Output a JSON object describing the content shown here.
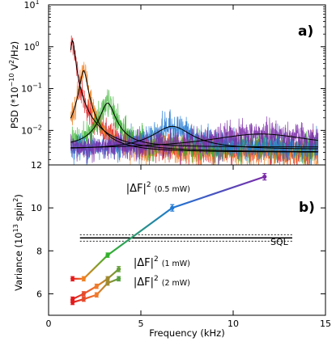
{
  "figure": {
    "bg_color": "#ffffff"
  },
  "chart_data": [
    {
      "panel_label": "a)",
      "type": "line",
      "ylabel": "PSD (*10$^{-10}$ V$^2$/Hz)",
      "ylabel_main": "PSD (*10",
      "ylabel_exp1": "−10",
      "ylabel_mid": " V",
      "ylabel_exp2": "2",
      "ylabel_end": "/Hz)",
      "yscale": "log",
      "ylim": [
        0.0015,
        10
      ],
      "xlim": [
        0,
        15
      ],
      "y_ticks": [
        {
          "value": 10,
          "base": "10",
          "exp": "1"
        },
        {
          "value": 1,
          "base": "10",
          "exp": "0"
        },
        {
          "value": 0.1,
          "base": "10",
          "exp": "−1"
        },
        {
          "value": 0.01,
          "base": "10",
          "exp": "−2"
        }
      ],
      "series": [
        {
          "color": "#e31a1c",
          "peak_khz": 1.3,
          "peak_psd": 1.4,
          "width_khz": 0.12,
          "floor": 0.003
        },
        {
          "color": "#f08020",
          "peak_khz": 1.9,
          "peak_psd": 0.27,
          "width_khz": 0.18,
          "floor": 0.003
        },
        {
          "color": "#33b02c",
          "peak_khz": 3.2,
          "peak_psd": 0.045,
          "width_khz": 0.35,
          "floor": 0.004
        },
        {
          "color": "#1f78d4",
          "peak_khz": 6.7,
          "peak_psd": 0.0125,
          "width_khz": 1.0,
          "floor": 0.0035
        },
        {
          "color": "#7b2aa8",
          "peak_khz": 11.5,
          "peak_psd": 0.0082,
          "width_khz": 3.0,
          "floor": 0.0035
        }
      ]
    },
    {
      "panel_label": "b)",
      "type": "line",
      "xlabel": "Frequency (kHz)",
      "ylabel": "Variance (10$^{13}$ spin$^2$)",
      "ylabel_main": "Variance (10",
      "ylabel_exp1": "13",
      "ylabel_mid": " spin",
      "ylabel_exp2": "2",
      "ylabel_end": ")",
      "xlim": [
        0,
        15
      ],
      "ylim": [
        5,
        12
      ],
      "x_ticks": [
        0,
        5,
        10,
        15
      ],
      "y_ticks": [
        6,
        8,
        10,
        12
      ],
      "sql_label": "SQL",
      "sql_value": 8.6,
      "sql_band": [
        8.45,
        8.75
      ],
      "annotations": [
        {
          "text": "|ΔF|",
          "exp": "2",
          "power": "(0.5 mW)",
          "x": 4.2,
          "y": 10.75
        },
        {
          "text": "|ΔF|",
          "exp": "2",
          "power": "(1 mW)",
          "x": 4.6,
          "y": 7.3
        },
        {
          "text": "|ΔF|",
          "exp": "2",
          "power": "(2 mW)",
          "x": 4.6,
          "y": 6.4
        }
      ],
      "series": [
        {
          "name": "0.5 mW",
          "x": [
            1.3,
            1.9,
            3.2,
            6.7,
            11.7
          ],
          "y": [
            6.7,
            6.7,
            7.8,
            10.0,
            11.45
          ],
          "err": [
            0.1,
            0.1,
            0.1,
            0.15,
            0.15
          ],
          "colors": [
            "#e31a1c",
            "#f08020",
            "#33b02c",
            "#1f78d4",
            "#7b2aa8"
          ]
        },
        {
          "name": "1 mW",
          "x": [
            1.3,
            1.9,
            2.6,
            3.2,
            3.8
          ],
          "y": [
            5.75,
            6.0,
            6.35,
            6.7,
            7.15
          ],
          "err": [
            0.1,
            0.1,
            0.1,
            0.1,
            0.12
          ],
          "colors": [
            "#e31a1c",
            "#e64a2a",
            "#f07a2a",
            "#a08a30",
            "#66a03a"
          ]
        },
        {
          "name": "2 mW",
          "x": [
            1.3,
            1.9,
            2.6,
            3.2,
            3.8
          ],
          "y": [
            5.6,
            5.75,
            5.95,
            6.5,
            6.7
          ],
          "err": [
            0.1,
            0.1,
            0.1,
            0.1,
            0.1
          ],
          "colors": [
            "#e31a1c",
            "#e64a2a",
            "#f07a2a",
            "#a08a30",
            "#55a040"
          ]
        }
      ]
    }
  ]
}
